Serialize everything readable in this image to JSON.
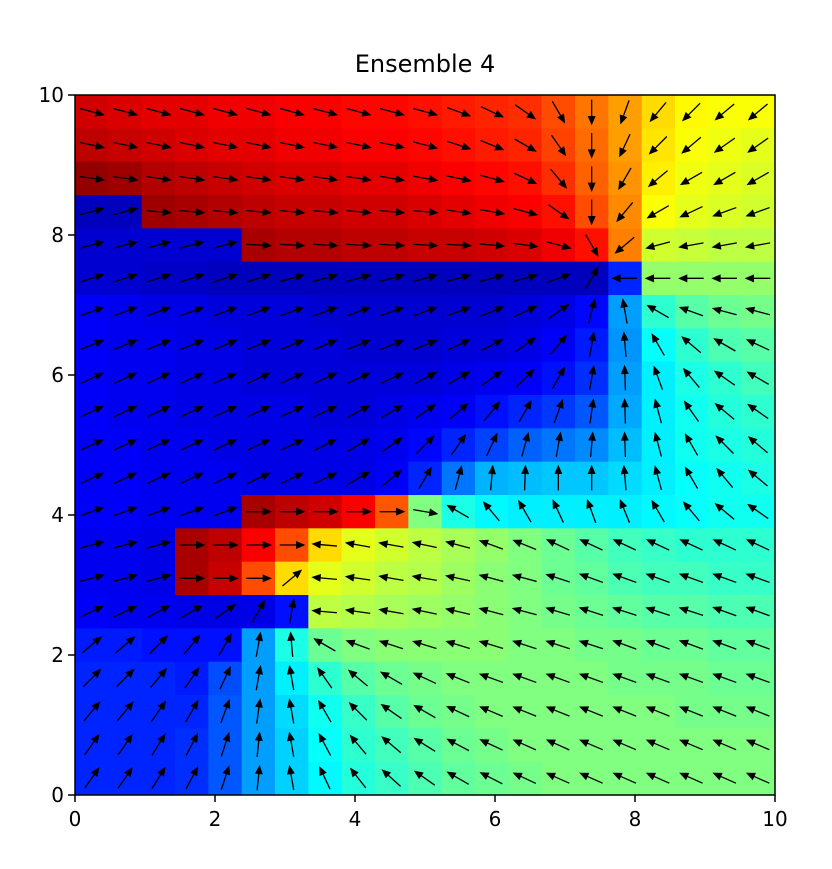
{
  "chart_data": {
    "type": "heatmap",
    "title": "Ensemble 4",
    "colormap": "jet",
    "xlim": [
      0,
      10
    ],
    "ylim": [
      0,
      10
    ],
    "xticks": [
      0,
      2,
      4,
      6,
      8,
      10
    ],
    "yticks": [
      0,
      2,
      4,
      6,
      8,
      10
    ],
    "z": [
      [
        0.92,
        0.91,
        0.9,
        0.9,
        0.89,
        0.89,
        0.88,
        0.88,
        0.87,
        0.87,
        0.86,
        0.85,
        0.84,
        0.83,
        0.8,
        0.76,
        0.72,
        0.66,
        0.63,
        0.62,
        0.62
      ],
      [
        0.94,
        0.93,
        0.92,
        0.91,
        0.9,
        0.9,
        0.89,
        0.89,
        0.88,
        0.88,
        0.87,
        0.86,
        0.85,
        0.84,
        0.81,
        0.77,
        0.72,
        0.65,
        0.62,
        0.61,
        0.6
      ],
      [
        0.98,
        0.97,
        0.95,
        0.94,
        0.93,
        0.92,
        0.91,
        0.91,
        0.9,
        0.9,
        0.89,
        0.88,
        0.87,
        0.86,
        0.83,
        0.78,
        0.73,
        0.64,
        0.61,
        0.6,
        0.59
      ],
      [
        0.06,
        0.06,
        0.97,
        0.96,
        0.95,
        0.94,
        0.93,
        0.93,
        0.92,
        0.92,
        0.91,
        0.9,
        0.89,
        0.88,
        0.86,
        0.8,
        0.74,
        0.62,
        0.6,
        0.59,
        0.58
      ],
      [
        0.08,
        0.08,
        0.08,
        0.08,
        0.08,
        0.96,
        0.95,
        0.95,
        0.94,
        0.94,
        0.93,
        0.93,
        0.92,
        0.91,
        0.89,
        0.86,
        0.75,
        0.58,
        0.57,
        0.56,
        0.56
      ],
      [
        0.08,
        0.08,
        0.07,
        0.07,
        0.06,
        0.06,
        0.06,
        0.06,
        0.06,
        0.06,
        0.06,
        0.06,
        0.06,
        0.06,
        0.06,
        0.06,
        0.16,
        0.52,
        0.52,
        0.52,
        0.52
      ],
      [
        0.12,
        0.11,
        0.1,
        0.1,
        0.09,
        0.09,
        0.09,
        0.08,
        0.08,
        0.08,
        0.08,
        0.08,
        0.08,
        0.09,
        0.1,
        0.13,
        0.28,
        0.42,
        0.46,
        0.48,
        0.49
      ],
      [
        0.12,
        0.11,
        0.11,
        0.1,
        0.1,
        0.09,
        0.09,
        0.09,
        0.08,
        0.08,
        0.08,
        0.09,
        0.09,
        0.1,
        0.12,
        0.15,
        0.27,
        0.38,
        0.42,
        0.45,
        0.46
      ],
      [
        0.12,
        0.11,
        0.11,
        0.1,
        0.1,
        0.09,
        0.09,
        0.09,
        0.09,
        0.09,
        0.09,
        0.1,
        0.11,
        0.12,
        0.14,
        0.17,
        0.28,
        0.36,
        0.4,
        0.42,
        0.44
      ],
      [
        0.12,
        0.11,
        0.11,
        0.1,
        0.1,
        0.1,
        0.1,
        0.09,
        0.09,
        0.1,
        0.11,
        0.12,
        0.14,
        0.16,
        0.18,
        0.21,
        0.29,
        0.36,
        0.39,
        0.41,
        0.42
      ],
      [
        0.12,
        0.12,
        0.11,
        0.11,
        0.1,
        0.1,
        0.1,
        0.1,
        0.1,
        0.11,
        0.13,
        0.16,
        0.19,
        0.22,
        0.24,
        0.26,
        0.31,
        0.36,
        0.39,
        0.4,
        0.41
      ],
      [
        0.12,
        0.12,
        0.11,
        0.11,
        0.11,
        0.1,
        0.1,
        0.1,
        0.1,
        0.12,
        0.16,
        0.24,
        0.3,
        0.31,
        0.32,
        0.32,
        0.34,
        0.36,
        0.38,
        0.39,
        0.4
      ],
      [
        0.12,
        0.12,
        0.11,
        0.11,
        0.11,
        0.96,
        0.94,
        0.92,
        0.88,
        0.79,
        0.5,
        0.4,
        0.37,
        0.36,
        0.36,
        0.36,
        0.36,
        0.37,
        0.38,
        0.39,
        0.39
      ],
      [
        0.11,
        0.11,
        0.1,
        0.96,
        0.94,
        0.88,
        0.8,
        0.66,
        0.6,
        0.58,
        0.56,
        0.54,
        0.52,
        0.5,
        0.48,
        0.46,
        0.44,
        0.43,
        0.42,
        0.42,
        0.42
      ],
      [
        0.11,
        0.11,
        0.1,
        0.96,
        0.93,
        0.8,
        0.66,
        0.6,
        0.58,
        0.56,
        0.55,
        0.53,
        0.51,
        0.5,
        0.48,
        0.47,
        0.45,
        0.44,
        0.44,
        0.43,
        0.43
      ],
      [
        0.12,
        0.11,
        0.11,
        0.1,
        0.1,
        0.1,
        0.14,
        0.56,
        0.55,
        0.54,
        0.53,
        0.52,
        0.51,
        0.5,
        0.49,
        0.48,
        0.47,
        0.46,
        0.46,
        0.45,
        0.45
      ],
      [
        0.15,
        0.15,
        0.14,
        0.14,
        0.14,
        0.28,
        0.4,
        0.48,
        0.5,
        0.51,
        0.51,
        0.51,
        0.51,
        0.5,
        0.5,
        0.49,
        0.49,
        0.48,
        0.48,
        0.47,
        0.47
      ],
      [
        0.16,
        0.16,
        0.16,
        0.15,
        0.2,
        0.28,
        0.36,
        0.42,
        0.46,
        0.48,
        0.49,
        0.5,
        0.5,
        0.5,
        0.5,
        0.5,
        0.49,
        0.49,
        0.49,
        0.48,
        0.48
      ],
      [
        0.16,
        0.16,
        0.16,
        0.16,
        0.21,
        0.28,
        0.34,
        0.39,
        0.43,
        0.46,
        0.48,
        0.49,
        0.5,
        0.5,
        0.5,
        0.5,
        0.5,
        0.5,
        0.49,
        0.49,
        0.49
      ],
      [
        0.16,
        0.16,
        0.16,
        0.17,
        0.21,
        0.28,
        0.33,
        0.38,
        0.42,
        0.44,
        0.46,
        0.48,
        0.49,
        0.5,
        0.5,
        0.5,
        0.5,
        0.5,
        0.5,
        0.5,
        0.5
      ],
      [
        0.16,
        0.16,
        0.16,
        0.17,
        0.21,
        0.28,
        0.33,
        0.37,
        0.41,
        0.43,
        0.45,
        0.47,
        0.48,
        0.49,
        0.5,
        0.5,
        0.5,
        0.5,
        0.5,
        0.5,
        0.5
      ]
    ],
    "quiver_angles": [
      [
        -15,
        -15,
        -15,
        -15,
        -15,
        -15,
        -15,
        -15,
        -15,
        -15,
        -15,
        -20,
        -25,
        -35,
        -60,
        -90,
        -110,
        -130,
        -135,
        -140,
        -140
      ],
      [
        -12,
        -12,
        -12,
        -12,
        -12,
        -12,
        -12,
        -12,
        -12,
        -12,
        -15,
        -18,
        -22,
        -30,
        -55,
        -90,
        -115,
        -135,
        -140,
        -145,
        -145
      ],
      [
        -8,
        -8,
        -8,
        -8,
        -8,
        -8,
        -8,
        -8,
        -8,
        -10,
        -10,
        -12,
        -15,
        -25,
        -50,
        -90,
        -120,
        -140,
        -150,
        -150,
        -150
      ],
      [
        15,
        15,
        -5,
        -5,
        -5,
        -5,
        -5,
        -5,
        -5,
        -5,
        -5,
        -8,
        -10,
        -15,
        -35,
        -90,
        -130,
        -150,
        -155,
        -160,
        -160
      ],
      [
        15,
        15,
        15,
        15,
        15,
        -3,
        -3,
        -3,
        -3,
        -3,
        -3,
        -3,
        -5,
        -8,
        -15,
        -60,
        -140,
        -165,
        -170,
        -170,
        -170
      ],
      [
        18,
        18,
        18,
        18,
        18,
        18,
        15,
        15,
        15,
        15,
        15,
        15,
        15,
        15,
        20,
        60,
        180,
        180,
        180,
        180,
        180
      ],
      [
        20,
        20,
        20,
        20,
        20,
        20,
        20,
        20,
        20,
        20,
        20,
        20,
        22,
        25,
        35,
        75,
        100,
        150,
        160,
        165,
        165
      ],
      [
        22,
        22,
        22,
        22,
        22,
        22,
        22,
        22,
        22,
        22,
        22,
        25,
        28,
        35,
        50,
        80,
        95,
        120,
        140,
        150,
        155
      ],
      [
        25,
        25,
        25,
        25,
        25,
        25,
        25,
        25,
        25,
        25,
        28,
        30,
        35,
        45,
        60,
        80,
        92,
        110,
        130,
        145,
        150
      ],
      [
        25,
        25,
        25,
        25,
        25,
        25,
        25,
        25,
        28,
        30,
        35,
        40,
        50,
        60,
        70,
        82,
        92,
        105,
        125,
        140,
        145
      ],
      [
        25,
        25,
        25,
        25,
        25,
        25,
        25,
        28,
        30,
        35,
        45,
        55,
        65,
        75,
        80,
        85,
        92,
        105,
        120,
        135,
        140
      ],
      [
        25,
        25,
        25,
        25,
        25,
        25,
        25,
        25,
        30,
        40,
        60,
        75,
        85,
        88,
        90,
        90,
        95,
        105,
        120,
        130,
        140
      ],
      [
        20,
        20,
        20,
        20,
        20,
        0,
        0,
        0,
        0,
        0,
        -10,
        150,
        130,
        120,
        115,
        110,
        112,
        120,
        130,
        140,
        145
      ],
      [
        15,
        15,
        15,
        0,
        0,
        0,
        0,
        175,
        170,
        170,
        168,
        165,
        160,
        158,
        155,
        155,
        155,
        155,
        155,
        155,
        155
      ],
      [
        15,
        15,
        15,
        0,
        0,
        0,
        40,
        175,
        172,
        170,
        170,
        168,
        165,
        165,
        162,
        160,
        160,
        160,
        160,
        160,
        160
      ],
      [
        25,
        25,
        28,
        30,
        35,
        60,
        80,
        175,
        172,
        170,
        168,
        167,
        165,
        165,
        163,
        162,
        162,
        162,
        162,
        160,
        160
      ],
      [
        40,
        40,
        45,
        50,
        60,
        80,
        95,
        150,
        160,
        162,
        163,
        163,
        163,
        162,
        162,
        162,
        160,
        160,
        160,
        160,
        160
      ],
      [
        45,
        45,
        50,
        55,
        65,
        80,
        100,
        125,
        140,
        150,
        155,
        158,
        160,
        160,
        160,
        160,
        160,
        160,
        160,
        160,
        160
      ],
      [
        50,
        50,
        55,
        60,
        70,
        82,
        100,
        120,
        135,
        145,
        150,
        155,
        157,
        158,
        158,
        158,
        158,
        158,
        158,
        158,
        158
      ],
      [
        55,
        55,
        58,
        62,
        72,
        84,
        100,
        118,
        130,
        140,
        148,
        152,
        155,
        156,
        156,
        157,
        157,
        157,
        157,
        157,
        157
      ],
      [
        55,
        55,
        58,
        62,
        72,
        84,
        100,
        115,
        128,
        138,
        145,
        150,
        153,
        155,
        156,
        156,
        156,
        156,
        156,
        156,
        156
      ]
    ]
  }
}
